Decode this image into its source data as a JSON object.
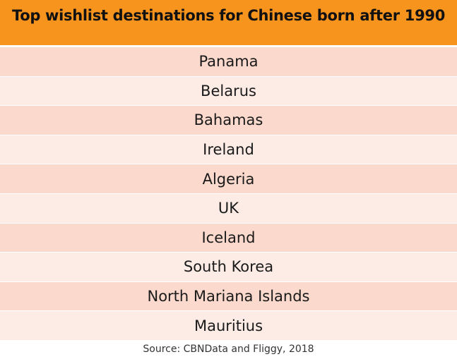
{
  "chart_data": {
    "type": "table",
    "title": "Top wishlist destinations for Chinese born after 1990",
    "rows": [
      "Panama",
      "Belarus",
      "Bahamas",
      "Ireland",
      "Algeria",
      "UK",
      "Iceland",
      "South Korea",
      "North Mariana Islands",
      "Mauritius"
    ],
    "source": "Source: CBNData and Fliggy, 2018"
  },
  "colors": {
    "header": "#f7941d",
    "row_dark": "#fbd9cc",
    "row_light": "#fdece6"
  }
}
